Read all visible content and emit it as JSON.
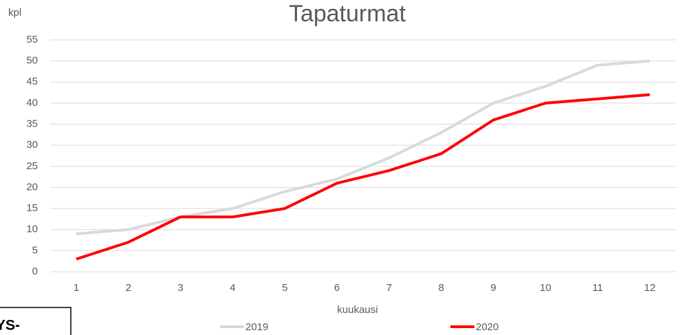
{
  "chart_data": {
    "type": "line",
    "title": "Tapaturmat",
    "y_label": "kpl",
    "x_label": "kuukausi",
    "categories": [
      "1",
      "2",
      "3",
      "4",
      "5",
      "6",
      "7",
      "8",
      "9",
      "10",
      "11",
      "12"
    ],
    "series": [
      {
        "name": "2019",
        "color": "#d9d9d9",
        "values": [
          9,
          10,
          13,
          15,
          19,
          22,
          27,
          33,
          40,
          44,
          49,
          50
        ]
      },
      {
        "name": "2020",
        "color": "#ff0000",
        "values": [
          3,
          7,
          13,
          13,
          15,
          21,
          24,
          28,
          36,
          40,
          41,
          42
        ]
      }
    ],
    "ylim": [
      0,
      55
    ],
    "yticks": [
      0,
      5,
      10,
      15,
      20,
      25,
      30,
      35,
      40,
      45,
      50,
      55
    ],
    "grid": true,
    "annotation": "YS-"
  }
}
